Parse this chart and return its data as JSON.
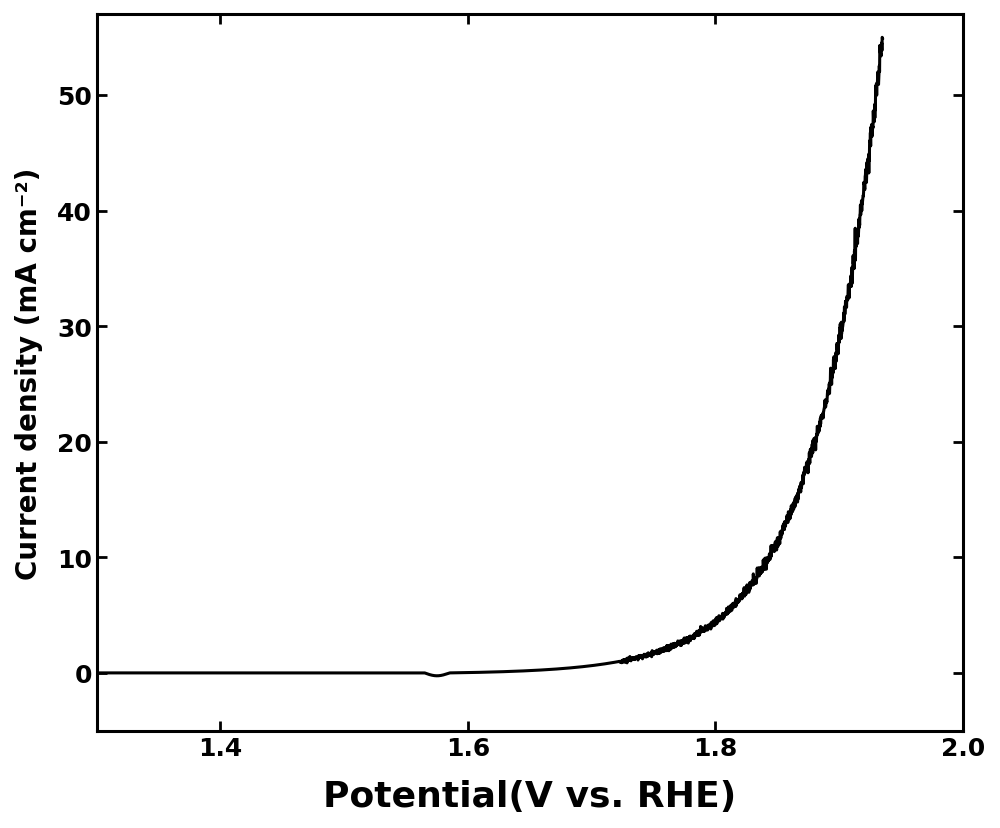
{
  "xlim": [
    1.3,
    2.0
  ],
  "ylim": [
    -5,
    57
  ],
  "xticks": [
    1.4,
    1.6,
    1.8,
    2.0
  ],
  "yticks": [
    0,
    10,
    20,
    30,
    40,
    50
  ],
  "xlabel": "Potential(V vs. RHE)",
  "ylabel": "Current density (mA cm⁻²)",
  "line_color": "#000000",
  "line_width": 2.2,
  "background_color": "#ffffff",
  "V_onset": 1.585,
  "A": 0.0012,
  "k": 18.5,
  "max_potential": 1.935,
  "xlabel_fontsize": 26,
  "ylabel_fontsize": 20,
  "tick_fontsize": 18,
  "tick_label_fontweight": "bold",
  "xlabel_fontweight": "bold",
  "ylabel_fontweight": "bold"
}
